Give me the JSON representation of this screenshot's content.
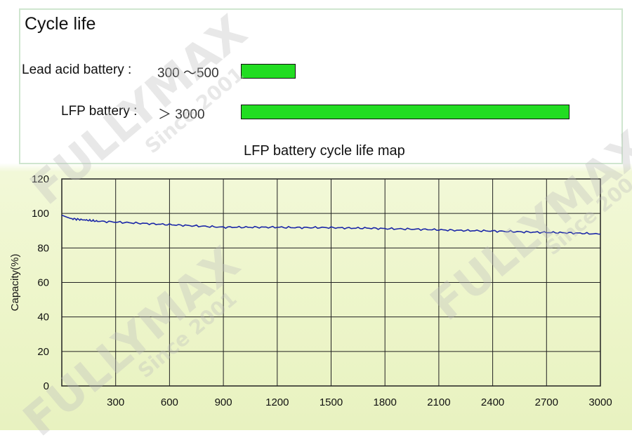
{
  "infobox": {
    "title": "Cycle life",
    "lead_acid": {
      "label": "Lead acid battery :",
      "value": "300 ～500",
      "level": 0.1
    },
    "lfp": {
      "label": "LFP battery : ",
      "value": "＞ 3000",
      "level": 0.6
    },
    "map_title": "LFP battery cycle life map"
  },
  "chart_data": {
    "type": "line",
    "ylabel": "Capacity(%)",
    "xlabel": "",
    "xlim": [
      0,
      3000
    ],
    "ylim": [
      0,
      120
    ],
    "x_ticks": [
      "300",
      "600",
      "900",
      "1200",
      "1500",
      "1800",
      "2100",
      "2400",
      "2700",
      "3000"
    ],
    "y_ticks": [
      "0",
      "20",
      "40",
      "60",
      "80",
      "100",
      "120"
    ],
    "grid": true,
    "series": [
      {
        "color": "#1b27a8",
        "x": [
          0,
          50,
          100,
          150,
          200,
          300,
          400,
          500,
          600,
          700,
          800,
          900,
          1000,
          1100,
          1200,
          1300,
          1400,
          1500,
          1600,
          1700,
          1800,
          1900,
          2000,
          2100,
          2200,
          2300,
          2400,
          2500,
          2600,
          2700,
          2800,
          2900,
          3000
        ],
        "y": [
          99,
          97,
          96.5,
          96,
          95.5,
          95,
          94.5,
          94,
          93.5,
          93,
          92.5,
          92,
          92,
          92,
          92,
          91.8,
          91.8,
          91.8,
          91.5,
          91.5,
          91.2,
          91,
          90.8,
          90.5,
          90.2,
          90,
          89.8,
          89.5,
          89.2,
          89,
          88.8,
          88.5,
          88
        ]
      }
    ]
  },
  "watermarks": [
    "FULLYMAX",
    "Since 2001",
    "®"
  ]
}
